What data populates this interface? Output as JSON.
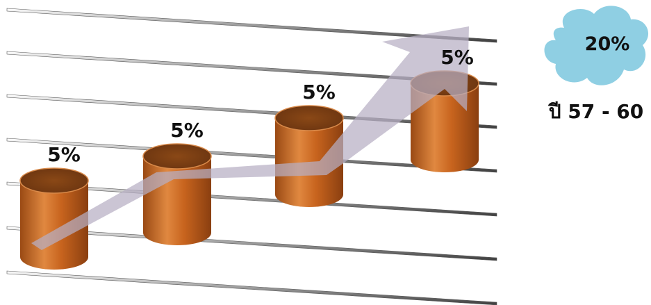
{
  "chart_data": {
    "type": "bar",
    "categories": [
      "",
      "",
      "",
      ""
    ],
    "values": [
      5,
      5,
      5,
      5
    ],
    "data_labels": [
      "5%",
      "5%",
      "5%",
      "5%"
    ],
    "ylabel": "",
    "xlabel": "",
    "grid": true,
    "trend_arrow": true
  },
  "summary": {
    "total_label": "20%",
    "period_label": "ปี 57 - 60"
  },
  "colors": {
    "bar_body": "#c8641e",
    "bar_top": "#7a3f12",
    "arrow": "#b7aec4",
    "cloud": "#8fcfe3",
    "gridline": "#5a5a5a"
  }
}
